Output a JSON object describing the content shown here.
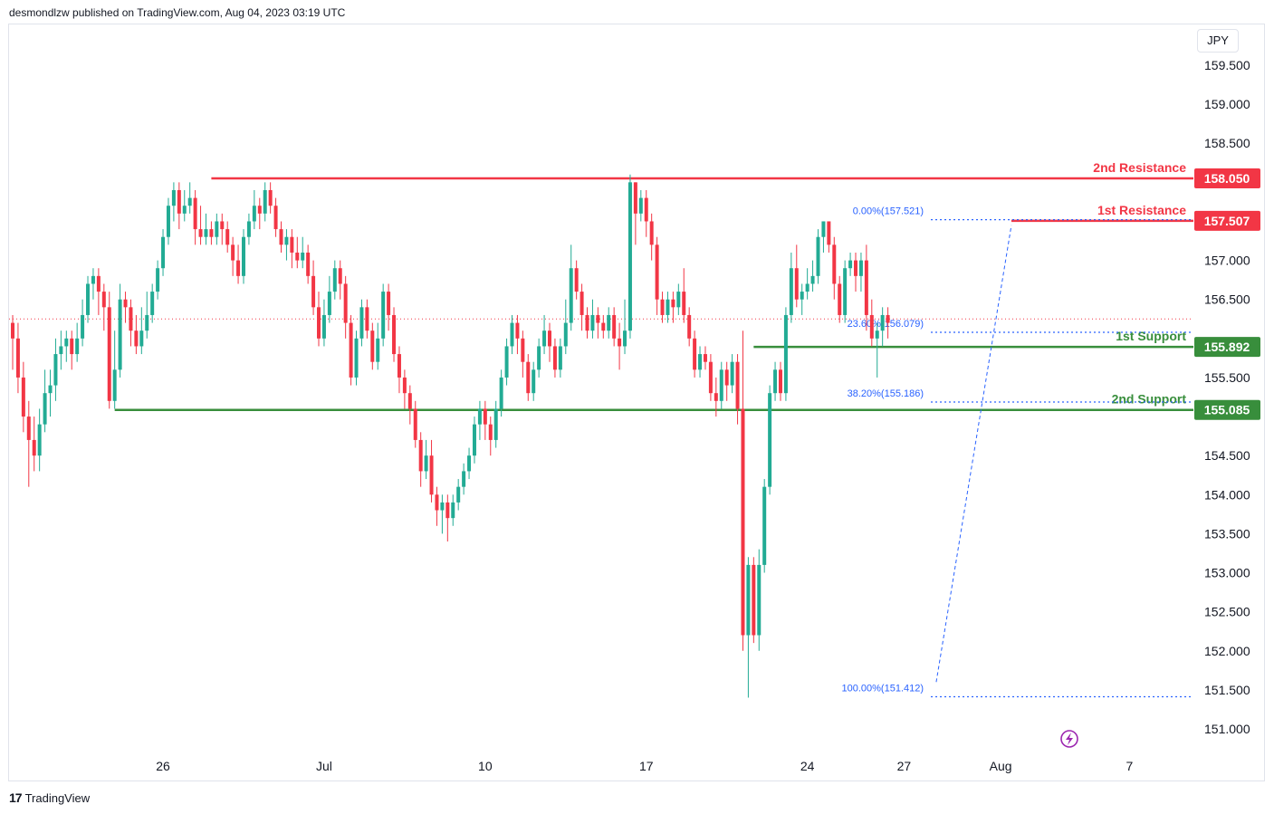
{
  "header": {
    "published": "desmondlzw published on TradingView.com, Aug 04, 2023 03:19 UTC"
  },
  "footer": {
    "brand_mark": "17",
    "brand": "TradingView"
  },
  "toolbar": {
    "currency": "JPY"
  },
  "colors": {
    "up": "#22ab94",
    "down": "#f23645",
    "resistance": "#f23645",
    "support": "#388e3c",
    "fib": "#2962ff",
    "last_price_line": "#f23645",
    "grid": "#f0f3fa"
  },
  "chart_data": {
    "type": "candlestick",
    "ylim": [
      150.7,
      160.0
    ],
    "yticks": [
      {
        "value": 159.5,
        "label": "159.500"
      },
      {
        "value": 159.0,
        "label": "159.000"
      },
      {
        "value": 158.5,
        "label": "158.500"
      },
      {
        "value": 157.0,
        "label": "157.000"
      },
      {
        "value": 156.5,
        "label": "156.500"
      },
      {
        "value": 155.5,
        "label": "155.500"
      },
      {
        "value": 154.5,
        "label": "154.500"
      },
      {
        "value": 154.0,
        "label": "154.000"
      },
      {
        "value": 153.5,
        "label": "153.500"
      },
      {
        "value": 153.0,
        "label": "153.000"
      },
      {
        "value": 152.5,
        "label": "152.500"
      },
      {
        "value": 152.0,
        "label": "152.000"
      },
      {
        "value": 151.5,
        "label": "151.500"
      },
      {
        "value": 151.0,
        "label": "151.000"
      }
    ],
    "xticks": [
      {
        "bar": 28,
        "label": "26"
      },
      {
        "bar": 58,
        "label": "Jul"
      },
      {
        "bar": 88,
        "label": "10"
      },
      {
        "bar": 118,
        "label": "17"
      },
      {
        "bar": 148,
        "label": "24"
      },
      {
        "bar": 166,
        "label": "27"
      },
      {
        "bar": 184,
        "label": "Aug"
      },
      {
        "bar": 208,
        "label": "7"
      }
    ],
    "levels": [
      {
        "name": "2nd Resistance",
        "value": 158.05,
        "value_label": "158.050",
        "kind": "resistance",
        "from_bar": 37
      },
      {
        "name": "1st Resistance",
        "value": 157.507,
        "value_label": "157.507",
        "kind": "resistance",
        "from_bar": 186
      },
      {
        "name": "1st Support",
        "value": 155.892,
        "value_label": "155.892",
        "kind": "support",
        "from_bar": 138
      },
      {
        "name": "2nd Support",
        "value": 155.085,
        "value_label": "155.085",
        "kind": "support",
        "from_bar": 19
      }
    ],
    "fib": [
      {
        "label": "0.00%(157.521)",
        "value": 157.521
      },
      {
        "label": "23.60%(156.079)",
        "value": 156.079
      },
      {
        "label": "38.20%(155.186)",
        "value": 155.186
      },
      {
        "label": "100.00%(151.412)",
        "value": 151.412
      }
    ],
    "fib_from_bar": 171,
    "last_price": 156.25,
    "candles": [
      [
        156.2,
        156.0,
        156.3,
        155.6
      ],
      [
        156.0,
        155.5,
        156.2,
        155.3
      ],
      [
        155.5,
        155.0,
        155.7,
        154.8
      ],
      [
        155.0,
        154.7,
        155.2,
        154.1
      ],
      [
        154.7,
        154.5,
        155.0,
        154.3
      ],
      [
        154.5,
        154.9,
        155.1,
        154.3
      ],
      [
        154.9,
        155.3,
        155.6,
        154.8
      ],
      [
        155.3,
        155.4,
        155.6,
        155.0
      ],
      [
        155.4,
        155.8,
        156.0,
        155.2
      ],
      [
        155.8,
        155.9,
        156.1,
        155.6
      ],
      [
        155.9,
        156.0,
        156.1,
        155.7
      ],
      [
        156.0,
        155.8,
        156.1,
        155.6
      ],
      [
        155.8,
        156.0,
        156.2,
        155.7
      ],
      [
        156.0,
        156.3,
        156.5,
        155.9
      ],
      [
        156.3,
        156.7,
        156.8,
        156.2
      ],
      [
        156.7,
        156.8,
        156.9,
        156.5
      ],
      [
        156.8,
        156.6,
        156.9,
        156.3
      ],
      [
        156.6,
        156.4,
        156.7,
        156.1
      ],
      [
        156.4,
        155.2,
        156.6,
        155.1
      ],
      [
        155.2,
        155.6,
        156.1,
        155.1
      ],
      [
        155.6,
        156.5,
        156.7,
        155.5
      ],
      [
        156.5,
        156.4,
        156.6,
        156.2
      ],
      [
        156.4,
        156.1,
        156.5,
        155.9
      ],
      [
        156.1,
        155.9,
        156.3,
        155.8
      ],
      [
        155.9,
        156.1,
        156.4,
        155.8
      ],
      [
        156.1,
        156.3,
        156.6,
        156.0
      ],
      [
        156.3,
        156.6,
        156.7,
        156.2
      ],
      [
        156.6,
        156.9,
        157.0,
        156.5
      ],
      [
        156.9,
        157.3,
        157.4,
        156.8
      ],
      [
        157.3,
        157.7,
        157.8,
        157.2
      ],
      [
        157.7,
        157.9,
        158.0,
        157.5
      ],
      [
        157.9,
        157.6,
        158.0,
        157.4
      ],
      [
        157.6,
        157.7,
        157.9,
        157.5
      ],
      [
        157.7,
        157.8,
        158.0,
        157.6
      ],
      [
        157.8,
        157.4,
        157.9,
        157.2
      ],
      [
        157.4,
        157.3,
        157.7,
        157.2
      ],
      [
        157.3,
        157.4,
        157.6,
        157.2
      ],
      [
        157.4,
        157.3,
        157.5,
        157.2
      ],
      [
        157.3,
        157.5,
        157.6,
        157.2
      ],
      [
        157.5,
        157.4,
        157.6,
        157.2
      ],
      [
        157.4,
        157.2,
        157.5,
        157.1
      ],
      [
        157.2,
        157.0,
        157.3,
        156.8
      ],
      [
        157.0,
        156.8,
        157.2,
        156.7
      ],
      [
        156.8,
        157.3,
        157.4,
        156.7
      ],
      [
        157.3,
        157.5,
        157.6,
        157.2
      ],
      [
        157.5,
        157.7,
        157.9,
        157.4
      ],
      [
        157.7,
        157.6,
        157.8,
        157.4
      ],
      [
        157.6,
        157.9,
        158.0,
        157.5
      ],
      [
        157.9,
        157.7,
        158.0,
        157.6
      ],
      [
        157.7,
        157.4,
        157.8,
        157.3
      ],
      [
        157.4,
        157.2,
        157.5,
        157.1
      ],
      [
        157.2,
        157.3,
        157.4,
        157.0
      ],
      [
        157.3,
        157.1,
        157.4,
        156.9
      ],
      [
        157.1,
        157.0,
        157.3,
        156.9
      ],
      [
        157.0,
        157.1,
        157.3,
        156.9
      ],
      [
        157.1,
        156.8,
        157.2,
        156.7
      ],
      [
        156.8,
        156.4,
        157.0,
        156.3
      ],
      [
        156.4,
        156.0,
        156.6,
        155.9
      ],
      [
        156.0,
        156.3,
        156.5,
        155.9
      ],
      [
        156.3,
        156.6,
        156.8,
        156.2
      ],
      [
        156.6,
        156.9,
        157.0,
        156.5
      ],
      [
        156.9,
        156.7,
        157.0,
        156.5
      ],
      [
        156.7,
        156.2,
        156.8,
        156.0
      ],
      [
        156.2,
        155.5,
        156.3,
        155.4
      ],
      [
        155.5,
        156.0,
        156.1,
        155.4
      ],
      [
        156.0,
        156.4,
        156.5,
        155.9
      ],
      [
        156.4,
        156.1,
        156.5,
        156.0
      ],
      [
        156.1,
        155.7,
        156.2,
        155.6
      ],
      [
        155.7,
        156.0,
        156.2,
        155.6
      ],
      [
        156.0,
        156.6,
        156.7,
        155.9
      ],
      [
        156.6,
        156.3,
        156.7,
        156.1
      ],
      [
        156.3,
        155.8,
        156.4,
        155.7
      ],
      [
        155.8,
        155.5,
        155.9,
        155.3
      ],
      [
        155.5,
        155.3,
        155.6,
        155.1
      ],
      [
        155.3,
        155.1,
        155.4,
        154.9
      ],
      [
        155.1,
        154.7,
        155.2,
        154.6
      ],
      [
        154.7,
        154.3,
        154.8,
        154.1
      ],
      [
        154.3,
        154.5,
        154.7,
        154.2
      ],
      [
        154.5,
        154.0,
        154.7,
        153.9
      ],
      [
        154.0,
        153.8,
        154.1,
        153.6
      ],
      [
        153.8,
        153.9,
        154.0,
        153.5
      ],
      [
        153.9,
        153.7,
        154.0,
        153.4
      ],
      [
        153.7,
        153.9,
        154.0,
        153.6
      ],
      [
        153.9,
        154.1,
        154.2,
        153.8
      ],
      [
        154.1,
        154.3,
        154.4,
        154.0
      ],
      [
        154.3,
        154.5,
        154.6,
        154.2
      ],
      [
        154.5,
        154.9,
        155.0,
        154.4
      ],
      [
        154.9,
        155.1,
        155.2,
        154.7
      ],
      [
        155.1,
        154.9,
        155.2,
        154.7
      ],
      [
        154.9,
        154.7,
        155.0,
        154.5
      ],
      [
        154.7,
        155.1,
        155.2,
        154.6
      ],
      [
        155.1,
        155.5,
        155.6,
        155.0
      ],
      [
        155.5,
        155.9,
        156.0,
        155.4
      ],
      [
        155.9,
        156.2,
        156.3,
        155.8
      ],
      [
        156.2,
        156.0,
        156.3,
        155.8
      ],
      [
        156.0,
        155.7,
        156.1,
        155.5
      ],
      [
        155.7,
        155.3,
        155.8,
        155.2
      ],
      [
        155.3,
        155.6,
        155.7,
        155.2
      ],
      [
        155.6,
        155.9,
        156.0,
        155.5
      ],
      [
        155.9,
        156.1,
        156.3,
        155.8
      ],
      [
        156.1,
        155.9,
        156.2,
        155.7
      ],
      [
        155.9,
        155.6,
        156.0,
        155.5
      ],
      [
        155.6,
        155.9,
        156.0,
        155.5
      ],
      [
        155.9,
        156.2,
        156.5,
        155.8
      ],
      [
        156.2,
        156.9,
        157.2,
        156.1
      ],
      [
        156.9,
        156.6,
        157.0,
        156.5
      ],
      [
        156.6,
        156.3,
        156.7,
        156.1
      ],
      [
        156.3,
        156.1,
        156.4,
        156.0
      ],
      [
        156.1,
        156.3,
        156.5,
        156.0
      ],
      [
        156.3,
        156.2,
        156.4,
        156.0
      ],
      [
        156.2,
        156.1,
        156.3,
        156.0
      ],
      [
        156.1,
        156.3,
        156.4,
        156.0
      ],
      [
        156.3,
        156.0,
        156.4,
        155.9
      ],
      [
        156.0,
        155.9,
        156.2,
        155.6
      ],
      [
        155.9,
        156.1,
        156.5,
        155.8
      ],
      [
        156.1,
        158.0,
        158.1,
        156.0
      ],
      [
        158.0,
        157.6,
        158.0,
        157.2
      ],
      [
        157.6,
        157.8,
        157.9,
        157.5
      ],
      [
        157.8,
        157.5,
        157.9,
        157.3
      ],
      [
        157.5,
        157.2,
        157.6,
        157.0
      ],
      [
        157.2,
        156.5,
        157.3,
        156.3
      ],
      [
        156.5,
        156.3,
        156.6,
        156.2
      ],
      [
        156.3,
        156.5,
        156.6,
        156.2
      ],
      [
        156.5,
        156.4,
        156.6,
        156.2
      ],
      [
        156.4,
        156.6,
        156.7,
        156.3
      ],
      [
        156.6,
        156.3,
        156.9,
        156.2
      ],
      [
        156.3,
        156.0,
        156.4,
        155.9
      ],
      [
        156.0,
        155.6,
        156.1,
        155.5
      ],
      [
        155.6,
        155.8,
        155.9,
        155.5
      ],
      [
        155.8,
        155.7,
        155.9,
        155.6
      ],
      [
        155.7,
        155.3,
        155.8,
        155.2
      ],
      [
        155.3,
        155.2,
        155.5,
        155.0
      ],
      [
        155.2,
        155.6,
        155.7,
        155.1
      ],
      [
        155.6,
        155.4,
        155.7,
        155.2
      ],
      [
        155.4,
        155.7,
        155.8,
        155.3
      ],
      [
        155.7,
        155.1,
        155.8,
        154.9
      ],
      [
        155.1,
        152.2,
        156.1,
        152.0
      ],
      [
        152.2,
        153.1,
        153.2,
        151.4
      ],
      [
        153.1,
        152.2,
        153.2,
        152.1
      ],
      [
        152.2,
        153.1,
        153.3,
        152.0
      ],
      [
        153.1,
        154.1,
        154.2,
        153.0
      ],
      [
        154.1,
        155.3,
        155.4,
        154.0
      ],
      [
        155.3,
        155.6,
        155.7,
        155.2
      ],
      [
        155.6,
        155.3,
        155.7,
        155.2
      ],
      [
        155.3,
        156.3,
        156.4,
        155.2
      ],
      [
        156.3,
        156.9,
        157.1,
        156.2
      ],
      [
        156.9,
        156.5,
        157.2,
        156.4
      ],
      [
        156.5,
        156.6,
        156.7,
        156.3
      ],
      [
        156.6,
        156.7,
        156.9,
        156.5
      ],
      [
        156.7,
        156.8,
        157.0,
        156.6
      ],
      [
        156.8,
        157.3,
        157.4,
        156.7
      ],
      [
        157.3,
        157.5,
        157.5,
        157.1
      ],
      [
        157.5,
        157.2,
        157.5,
        157.1
      ],
      [
        157.2,
        156.7,
        157.3,
        156.5
      ],
      [
        156.7,
        156.3,
        156.8,
        156.2
      ],
      [
        156.3,
        156.9,
        157.0,
        156.2
      ],
      [
        156.9,
        157.0,
        157.1,
        156.8
      ],
      [
        157.0,
        156.8,
        157.1,
        156.6
      ],
      [
        156.8,
        157.0,
        157.1,
        156.6
      ],
      [
        157.0,
        156.3,
        157.2,
        156.1
      ],
      [
        156.3,
        156.0,
        156.5,
        155.9
      ],
      [
        156.0,
        156.1,
        156.2,
        155.5
      ],
      [
        156.1,
        156.3,
        156.4,
        155.9
      ],
      [
        156.3,
        156.2,
        156.4,
        156.0
      ]
    ]
  }
}
